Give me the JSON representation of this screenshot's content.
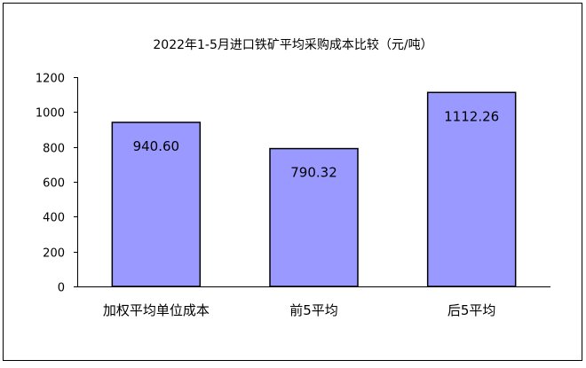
{
  "chart_data": {
    "type": "bar",
    "title": "2022年1-5月进口铁矿平均采购成本比较（元/吨）",
    "categories": [
      "加权平均单位成本",
      "前5平均",
      "后5平均"
    ],
    "values": [
      940.6,
      790.32,
      1112.26
    ],
    "data_labels": [
      "940.60",
      "790.32",
      "1112.26"
    ],
    "ylim": [
      0,
      1200
    ],
    "yticks": [
      0,
      200,
      400,
      600,
      800,
      1000,
      1200
    ],
    "grid": false,
    "legend": "none",
    "bar_color": "#9999ff",
    "bar_edge_color": "#000000"
  }
}
